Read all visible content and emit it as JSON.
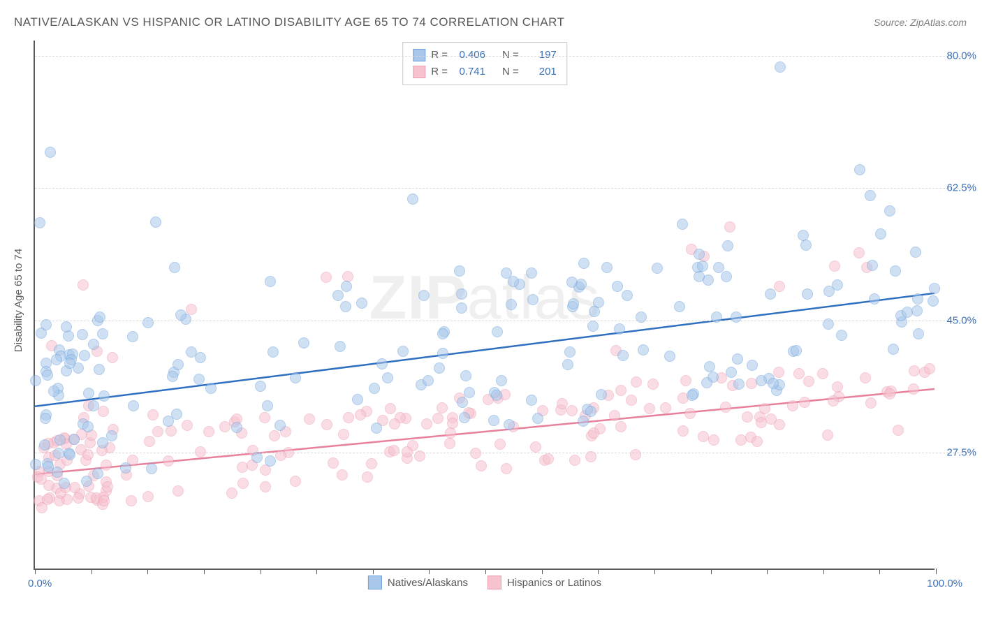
{
  "title": "NATIVE/ALASKAN VS HISPANIC OR LATINO DISABILITY AGE 65 TO 74 CORRELATION CHART",
  "source_prefix": "Source: ",
  "source_name": "ZipAtlas.com",
  "y_axis_label": "Disability Age 65 to 74",
  "watermark_bold": "ZIP",
  "watermark_rest": "atlas",
  "chart": {
    "type": "scatter",
    "background_color": "#ffffff",
    "grid_color": "#d8d8d8",
    "axis_color": "#5a5a5a",
    "x_min": 0.0,
    "x_max": 100.0,
    "y_min": 12.0,
    "y_max": 82.0,
    "x_label_min": "0.0%",
    "x_label_max": "100.0%",
    "y_ticks": [
      27.5,
      45.0,
      62.5,
      80.0
    ],
    "y_tick_labels": [
      "27.5%",
      "45.0%",
      "62.5%",
      "80.0%"
    ],
    "x_tick_positions": [
      0,
      6.25,
      12.5,
      18.75,
      25,
      31.25,
      37.5,
      43.75,
      50,
      56.25,
      62.5,
      68.75,
      75,
      81.25,
      87.5,
      93.75,
      100
    ],
    "marker_radius": 8,
    "marker_opacity": 0.55,
    "series": [
      {
        "name": "Natives/Alaskans",
        "fill": "#a8c7eb",
        "stroke": "#6fa3dc",
        "line_color": "#2f6fc0",
        "line_width": 2.5,
        "R": "0.406",
        "N": "197",
        "trend": {
          "x1": 0,
          "y1": 33.5,
          "x2": 100,
          "y2": 48.5
        }
      },
      {
        "name": "Hispanics or Latinos",
        "fill": "#f6c2ce",
        "stroke": "#ec9db0",
        "line_color": "#e87f9b",
        "line_width": 2.5,
        "R": "0.741",
        "N": "201",
        "trend": {
          "x1": 0,
          "y1": 24.5,
          "x2": 100,
          "y2": 35.8
        }
      }
    ]
  },
  "stats_labels": {
    "R": "R =",
    "N": "N ="
  }
}
